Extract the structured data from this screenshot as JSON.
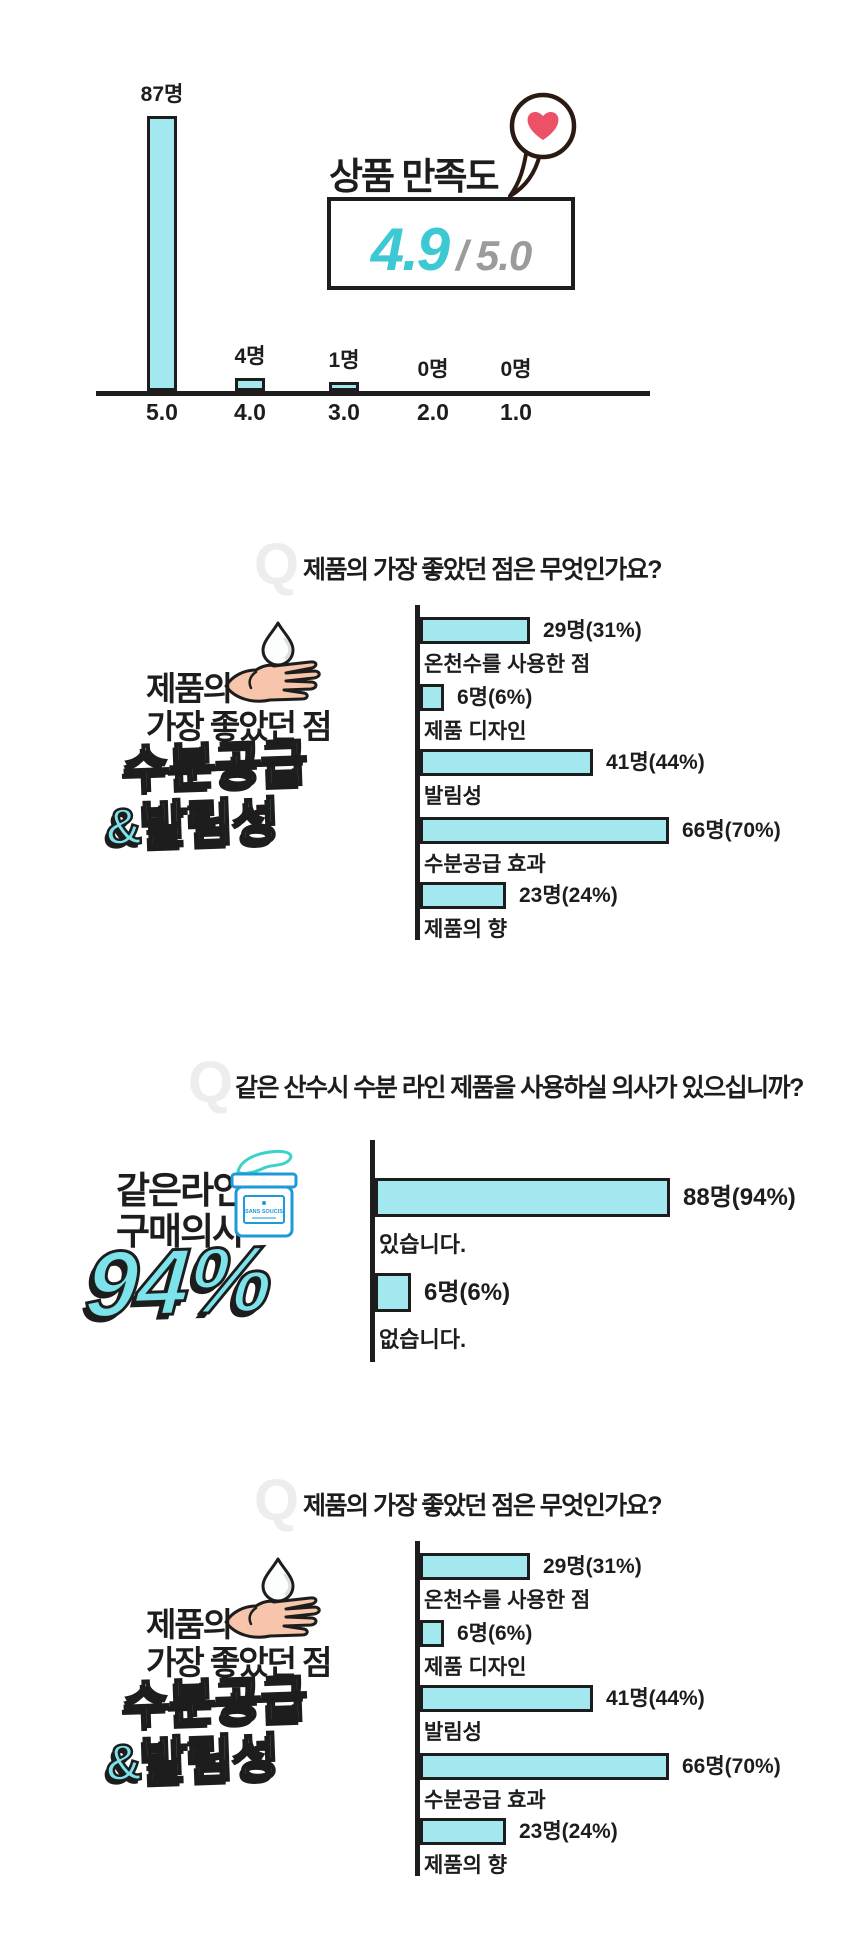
{
  "colors": {
    "background": "#ffffff",
    "dark": "#1d1d1d",
    "bar_fill": "#a3e8ef",
    "accent_cyan": "#3cc9d3",
    "display_cyan": "#7ce3eb",
    "gray": "#9b9b9b",
    "q_gray": "#ededed",
    "heart_pink": "#eb5268",
    "bubble_outline": "#2b1a12",
    "jar_blue": "#1e9ad8",
    "lid_mint": "#3bd3c8",
    "hand_peach": "#f6c5ab"
  },
  "icons": {
    "bubble": "heart-speech-bubble-icon",
    "heart": "heart-icon",
    "drop": "water-drop-icon",
    "hand": "open-hand-icon",
    "jar": "cream-jar-icon"
  },
  "satisfaction": {
    "title": "상품 만족도",
    "score": "4.9",
    "separator": "/",
    "max_score": "5.0"
  },
  "q1": {
    "q_letter": "Q",
    "question": "제품의 가장 좋았던 점은 무엇인가요?",
    "graphic": {
      "top1": "제품의",
      "top2": "가장 좋았던 점",
      "big1": "수분공급",
      "big2": "&발림성"
    }
  },
  "q2": {
    "q_letter": "Q",
    "question": "같은 산수시 수분 라인 제품을 사용하실 의사가 있으십니까?",
    "graphic": {
      "top1": "같은라인",
      "top2": "구매의사",
      "big": "94%",
      "jar_label": "SANS SOUCIS"
    }
  },
  "q3": {
    "q_letter": "Q",
    "question": "제품의 가장 좋았던 점은 무엇인가요?",
    "graphic": {
      "top1": "제품의",
      "top2": "가장 좋았던 점",
      "big1": "수분공급",
      "big2": "&발림성"
    }
  },
  "chart_data": [
    {
      "type": "bar",
      "title": "상품 만족도",
      "unit": "명",
      "categories": [
        "5.0",
        "4.0",
        "3.0",
        "2.0",
        "1.0"
      ],
      "values": [
        87,
        4,
        1,
        0,
        0
      ],
      "value_labels": [
        "87명",
        "4명",
        "1명",
        "0명",
        "0명"
      ],
      "ylim": [
        0,
        90
      ],
      "grid": false,
      "annotation": "4.9/5.0"
    },
    {
      "type": "bar",
      "orientation": "horizontal",
      "question": "제품의 가장 좋았던 점은 무엇인가요?",
      "unit": "명",
      "categories": [
        "온천수를 사용한 점",
        "제품 디자인",
        "발림성",
        "수분공급 효과",
        "제품의 향"
      ],
      "values": [
        29,
        6,
        41,
        66,
        23
      ],
      "percents": [
        31,
        6,
        44,
        70,
        24
      ],
      "value_labels": [
        "29명(31%)",
        "6명(6%)",
        "41명(44%)",
        "66명(70%)",
        "23명(24%)"
      ],
      "xlim": [
        0,
        70
      ],
      "grid": false
    },
    {
      "type": "bar",
      "orientation": "horizontal",
      "question": "같은 산수시 수분 라인 제품을 사용하실 의사가 있으십니까?",
      "unit": "명",
      "categories": [
        "있습니다.",
        "없습니다."
      ],
      "values": [
        88,
        6
      ],
      "percents": [
        94,
        6
      ],
      "value_labels": [
        "88명(94%)",
        "6명(6%)"
      ],
      "xlim": [
        0,
        94
      ],
      "grid": false
    },
    {
      "type": "bar",
      "orientation": "horizontal",
      "question": "제품의 가장 좋았던 점은 무엇인가요?",
      "unit": "명",
      "categories": [
        "온천수를 사용한 점",
        "제품 디자인",
        "발림성",
        "수분공급 효과",
        "제품의 향"
      ],
      "values": [
        29,
        6,
        41,
        66,
        23
      ],
      "percents": [
        31,
        6,
        44,
        70,
        24
      ],
      "value_labels": [
        "29명(31%)",
        "6명(6%)",
        "41명(44%)",
        "66명(70%)",
        "23명(24%)"
      ],
      "xlim": [
        0,
        70
      ],
      "grid": false
    }
  ]
}
